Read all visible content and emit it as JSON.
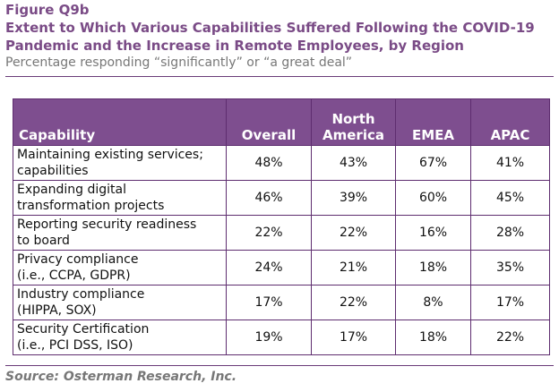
{
  "figure": {
    "label": "Figure Q9b",
    "title_line1": "Extent to Which Various Capabilities Suffered Following the COVID-19",
    "title_line2": "Pandemic and the Increase in Remote Employees, by Region",
    "subtitle": "Percentage responding “significantly” or “a great deal”"
  },
  "table": {
    "headers": {
      "capability": "Capability",
      "overall": "Overall",
      "north_america_line1": "North",
      "north_america_line2": "America",
      "emea": "EMEA",
      "apac": "APAC"
    },
    "rows": [
      {
        "line1": "Maintaining existing services;",
        "line2": "capabilities",
        "overall": "48%",
        "north_america": "43%",
        "emea": "67%",
        "apac": "41%"
      },
      {
        "line1": "Expanding digital",
        "line2": "transformation projects",
        "overall": "46%",
        "north_america": "39%",
        "emea": "60%",
        "apac": "45%"
      },
      {
        "line1": "Reporting security readiness",
        "line2": "to board",
        "overall": "22%",
        "north_america": "22%",
        "emea": "16%",
        "apac": "28%"
      },
      {
        "line1": "Privacy compliance",
        "line2": "(i.e., CCPA, GDPR)",
        "overall": "24%",
        "north_america": "21%",
        "emea": "18%",
        "apac": "35%"
      },
      {
        "line1": "Industry compliance",
        "line2": "(HIPPA, SOX)",
        "overall": "17%",
        "north_america": "22%",
        "emea": "8%",
        "apac": "17%"
      },
      {
        "line1": "Security Certification",
        "line2": "(i.e., PCI DSS, ISO)",
        "overall": "19%",
        "north_america": "17%",
        "emea": "18%",
        "apac": "22%"
      }
    ]
  },
  "source": "Source: Osterman Research, Inc.",
  "colors": {
    "title": "#7a4b86",
    "header_bg": "#7e4e8f",
    "border": "#5e2d6f",
    "subtitle": "#777777"
  }
}
